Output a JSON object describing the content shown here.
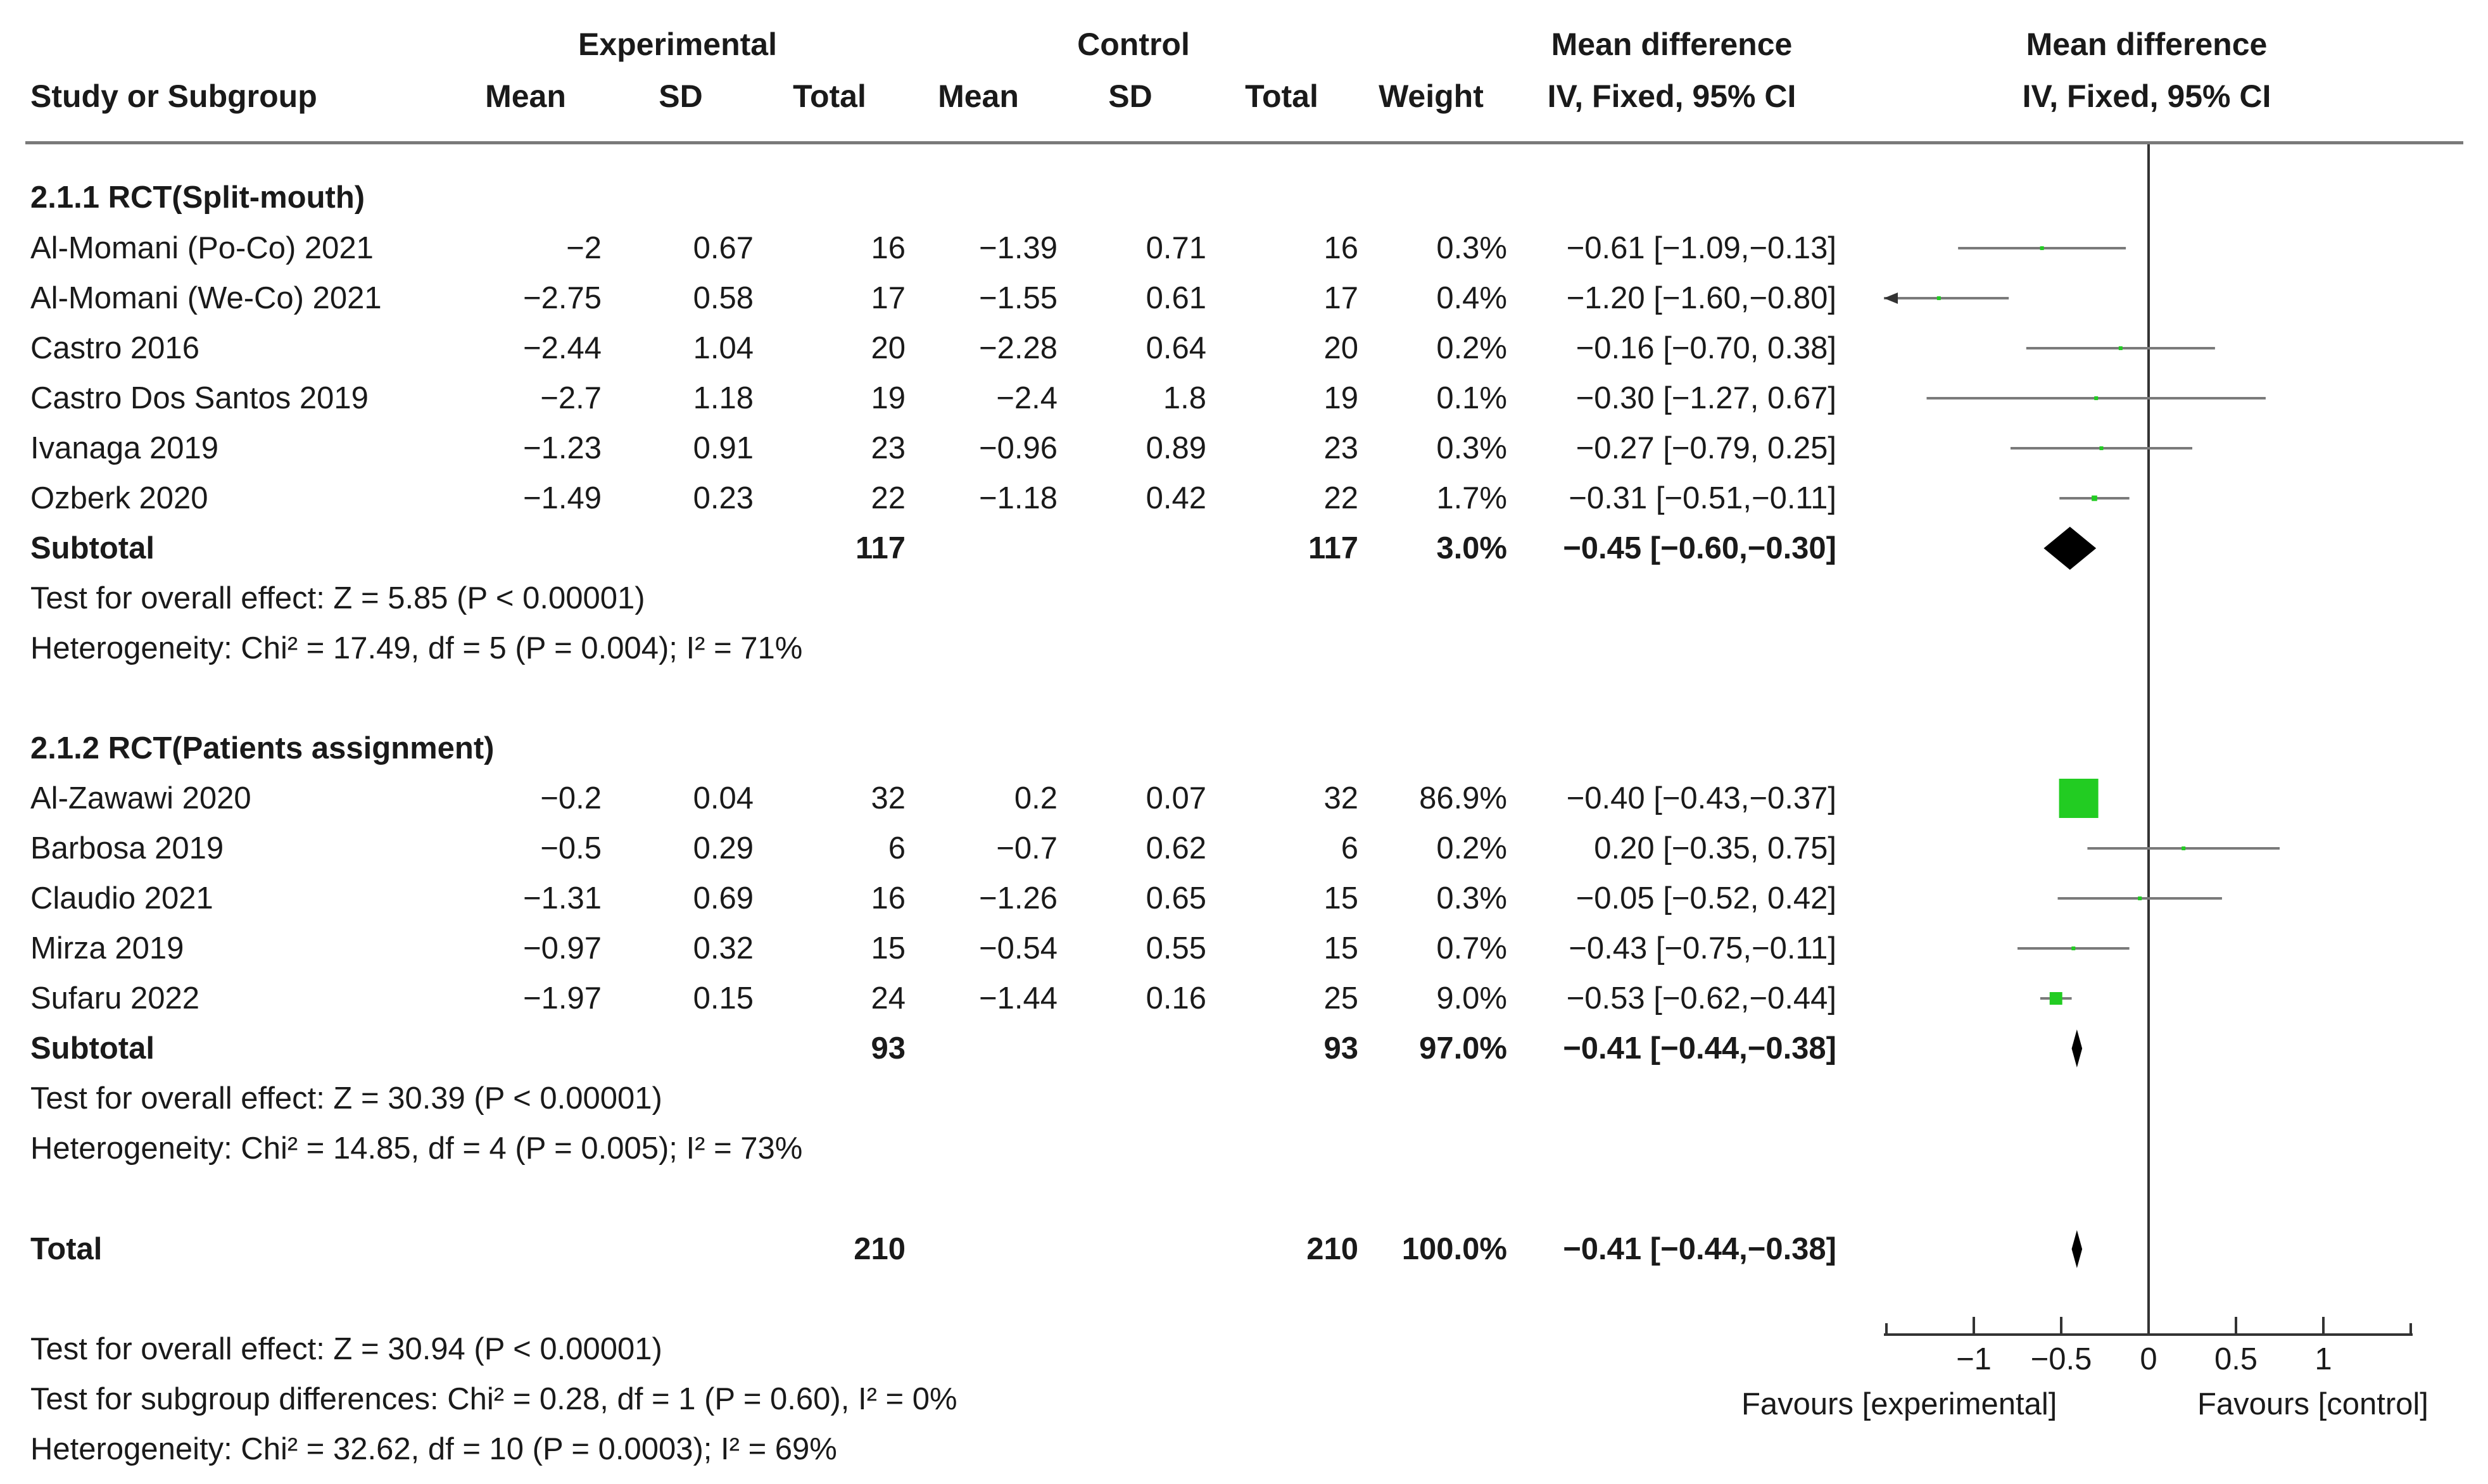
{
  "headers": {
    "experimental": "Experimental",
    "control": "Control",
    "md_title_left": "Mean difference",
    "md_title_right": "Mean difference",
    "study": "Study or Subgroup",
    "mean": "Mean",
    "sd": "SD",
    "total": "Total",
    "weight": "Weight",
    "ci_method_left": "IV, Fixed, 95% CI",
    "ci_method_right": "IV, Fixed, 95% CI"
  },
  "groups": [
    {
      "title": "2.1.1 RCT(Split-mouth)",
      "studies": [
        {
          "name": "Al-Momani (Po-Co) 2021",
          "e_mean": "−2",
          "e_sd": "0.67",
          "e_total": "16",
          "c_mean": "−1.39",
          "c_sd": "0.71",
          "c_total": "16",
          "weight": "0.3%",
          "ci": "−0.61 [−1.09,−0.13]"
        },
        {
          "name": "Al-Momani (We-Co) 2021",
          "e_mean": "−2.75",
          "e_sd": "0.58",
          "e_total": "17",
          "c_mean": "−1.55",
          "c_sd": "0.61",
          "c_total": "17",
          "weight": "0.4%",
          "ci": "−1.20 [−1.60,−0.80]"
        },
        {
          "name": "Castro 2016",
          "e_mean": "−2.44",
          "e_sd": "1.04",
          "e_total": "20",
          "c_mean": "−2.28",
          "c_sd": "0.64",
          "c_total": "20",
          "weight": "0.2%",
          "ci": "−0.16 [−0.70, 0.38]"
        },
        {
          "name": "Castro Dos Santos 2019",
          "e_mean": "−2.7",
          "e_sd": "1.18",
          "e_total": "19",
          "c_mean": "−2.4",
          "c_sd": "1.8",
          "c_total": "19",
          "weight": "0.1%",
          "ci": "−0.30 [−1.27, 0.67]"
        },
        {
          "name": "Ivanaga 2019",
          "e_mean": "−1.23",
          "e_sd": "0.91",
          "e_total": "23",
          "c_mean": "−0.96",
          "c_sd": "0.89",
          "c_total": "23",
          "weight": "0.3%",
          "ci": "−0.27 [−0.79, 0.25]"
        },
        {
          "name": "Ozberk 2020",
          "e_mean": "−1.49",
          "e_sd": "0.23",
          "e_total": "22",
          "c_mean": "−1.18",
          "c_sd": "0.42",
          "c_total": "22",
          "weight": "1.7%",
          "ci": "−0.31 [−0.51,−0.11]"
        }
      ],
      "subtotal": {
        "label": "Subtotal",
        "e_total": "117",
        "c_total": "117",
        "weight": "3.0%",
        "ci": "−0.45 [−0.60,−0.30]"
      },
      "test_overall": "Test for overall effect: Z = 5.85 (P < 0.00001)",
      "heterogeneity": "Heterogeneity: Chi² = 17.49, df = 5 (P = 0.004); I² = 71%"
    },
    {
      "title": "2.1.2 RCT(Patients assignment)",
      "studies": [
        {
          "name": "Al-Zawawi 2020",
          "e_mean": "−0.2",
          "e_sd": "0.04",
          "e_total": "32",
          "c_mean": "0.2",
          "c_sd": "0.07",
          "c_total": "32",
          "weight": "86.9%",
          "ci": "−0.40 [−0.43,−0.37]"
        },
        {
          "name": "Barbosa 2019",
          "e_mean": "−0.5",
          "e_sd": "0.29",
          "e_total": "6",
          "c_mean": "−0.7",
          "c_sd": "0.62",
          "c_total": "6",
          "weight": "0.2%",
          "ci": "0.20 [−0.35, 0.75]"
        },
        {
          "name": "Claudio 2021",
          "e_mean": "−1.31",
          "e_sd": "0.69",
          "e_total": "16",
          "c_mean": "−1.26",
          "c_sd": "0.65",
          "c_total": "15",
          "weight": "0.3%",
          "ci": "−0.05 [−0.52, 0.42]"
        },
        {
          "name": "Mirza 2019",
          "e_mean": "−0.97",
          "e_sd": "0.32",
          "e_total": "15",
          "c_mean": "−0.54",
          "c_sd": "0.55",
          "c_total": "15",
          "weight": "0.7%",
          "ci": "−0.43 [−0.75,−0.11]"
        },
        {
          "name": "Sufaru 2022",
          "e_mean": "−1.97",
          "e_sd": "0.15",
          "e_total": "24",
          "c_mean": "−1.44",
          "c_sd": "0.16",
          "c_total": "25",
          "weight": "9.0%",
          "ci": "−0.53 [−0.62,−0.44]"
        }
      ],
      "subtotal": {
        "label": "Subtotal",
        "e_total": "93",
        "c_total": "93",
        "weight": "97.0%",
        "ci": "−0.41 [−0.44,−0.38]"
      },
      "test_overall": "Test for overall effect: Z = 30.39 (P < 0.00001)",
      "heterogeneity": "Heterogeneity: Chi² = 14.85, df = 4 (P = 0.005); I² = 73%"
    }
  ],
  "total": {
    "label": "Total",
    "e_total": "210",
    "c_total": "210",
    "weight": "100.0%",
    "ci": "−0.41 [−0.44,−0.38]"
  },
  "footer": {
    "test_overall": "Test for overall effect: Z = 30.94 (P < 0.00001)",
    "subgroup_diff": "Test for subgroup differences: Chi² = 0.28, df = 1 (P = 0.60), I² = 0%",
    "heterogeneity": "Heterogeneity: Chi² = 32.62, df = 10 (P = 0.0003); I² = 69%"
  },
  "axis": {
    "favours_left": "Favours [experimental]",
    "favours_right": "Favours [control]"
  },
  "colors": {
    "square": "#22cc22",
    "diamond": "#000000",
    "ci_line": "#7a7a7a",
    "axis": "#333333"
  },
  "chart_data": {
    "type": "forest",
    "xlim": [
      -1.5,
      1.5
    ],
    "xticks": [
      -1,
      -0.5,
      0,
      0.5,
      1
    ],
    "xtick_labels": [
      "−1",
      "−0.5",
      "0",
      "0.5",
      "1"
    ],
    "null_value": 0,
    "studies": [
      {
        "name": "Al-Momani (Po-Co) 2021",
        "md": -0.61,
        "lo": -1.09,
        "hi": -0.13,
        "weight": 0.3
      },
      {
        "name": "Al-Momani (We-Co) 2021",
        "md": -1.2,
        "lo": -1.6,
        "hi": -0.8,
        "weight": 0.4,
        "arrow_left": true
      },
      {
        "name": "Castro 2016",
        "md": -0.16,
        "lo": -0.7,
        "hi": 0.38,
        "weight": 0.2
      },
      {
        "name": "Castro Dos Santos 2019",
        "md": -0.3,
        "lo": -1.27,
        "hi": 0.67,
        "weight": 0.1
      },
      {
        "name": "Ivanaga 2019",
        "md": -0.27,
        "lo": -0.79,
        "hi": 0.25,
        "weight": 0.3
      },
      {
        "name": "Ozberk 2020",
        "md": -0.31,
        "lo": -0.51,
        "hi": -0.11,
        "weight": 1.7
      },
      {
        "name": "Al-Zawawi 2020",
        "md": -0.4,
        "lo": -0.43,
        "hi": -0.37,
        "weight": 86.9
      },
      {
        "name": "Barbosa 2019",
        "md": 0.2,
        "lo": -0.35,
        "hi": 0.75,
        "weight": 0.2
      },
      {
        "name": "Claudio 2021",
        "md": -0.05,
        "lo": -0.52,
        "hi": 0.42,
        "weight": 0.3
      },
      {
        "name": "Mirza 2019",
        "md": -0.43,
        "lo": -0.75,
        "hi": -0.11,
        "weight": 0.7
      },
      {
        "name": "Sufaru 2022",
        "md": -0.53,
        "lo": -0.62,
        "hi": -0.44,
        "weight": 9.0
      }
    ],
    "summaries": [
      {
        "name": "Subtotal 2.1.1",
        "md": -0.45,
        "lo": -0.6,
        "hi": -0.3
      },
      {
        "name": "Subtotal 2.1.2",
        "md": -0.41,
        "lo": -0.44,
        "hi": -0.38
      },
      {
        "name": "Total",
        "md": -0.41,
        "lo": -0.44,
        "hi": -0.38
      }
    ]
  }
}
